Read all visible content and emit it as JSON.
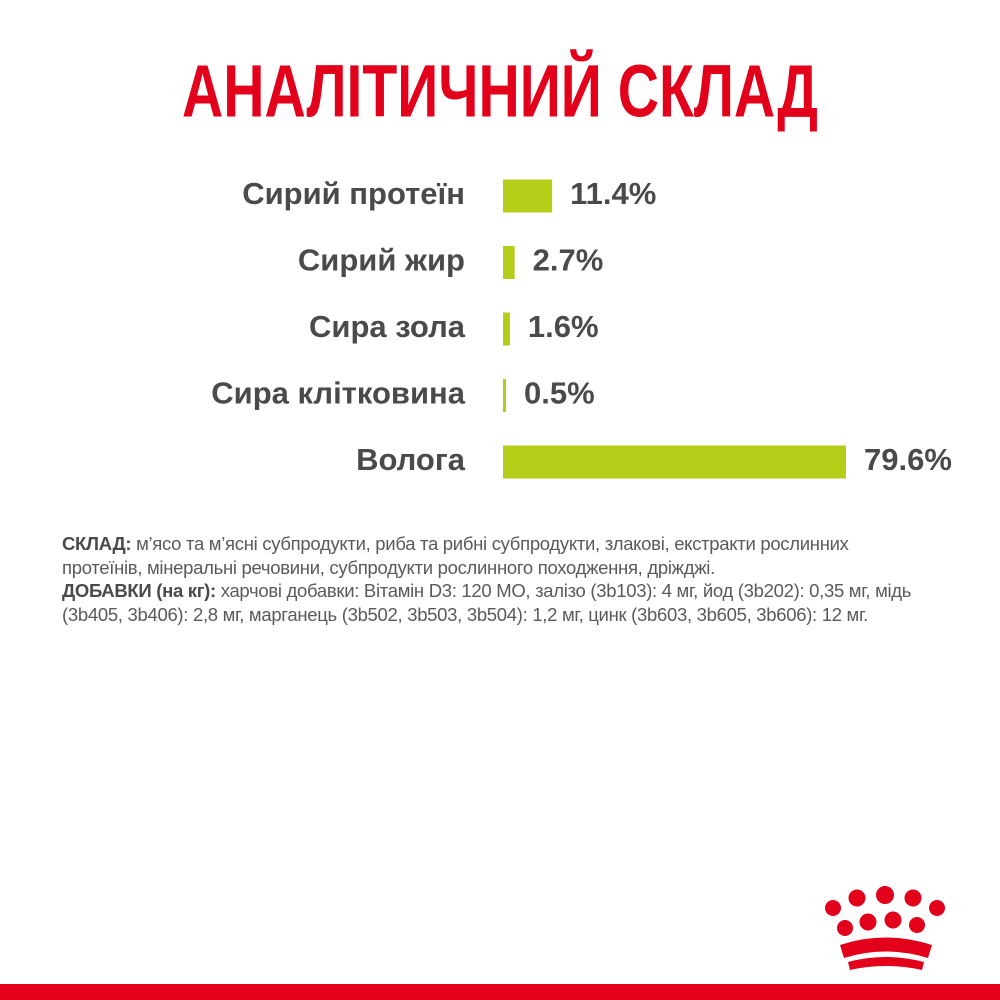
{
  "chart_data": {
    "type": "bar",
    "orientation": "horizontal",
    "title": "АНАЛІТИЧНИЙ СКЛАД",
    "categories": [
      "Сирий протеїн",
      "Сирий жир",
      "Сира зола",
      "Сира клітковина",
      "Волога"
    ],
    "values": [
      11.4,
      2.7,
      1.6,
      0.5,
      79.6
    ],
    "value_labels": [
      "11.4%",
      "2.7%",
      "1.6%",
      "0.5%",
      "79.6%"
    ],
    "color": "#b5cc18"
  },
  "composition": {
    "label": "СКЛАД:",
    "text": "м’ясо та м’ясні субпродукти, риба та рибні субпродукти, злакові, екстракти рослинних протеїнів, мінеральні речовини, субпродукти рослинного походження, дріжджі."
  },
  "additives": {
    "label": "ДОБАВКИ (на кг):",
    "text": "харчові добавки: Вітамін D3: 120 МО, залізо (3b103): 4 мг, йод (3b202): 0,35 мг, мідь (3b405, 3b406): 2,8 мг, марганець (3b502, 3b503, 3b504): 1,2 мг, цинк (3b603, 3b605, 3b606): 12 мг."
  }
}
